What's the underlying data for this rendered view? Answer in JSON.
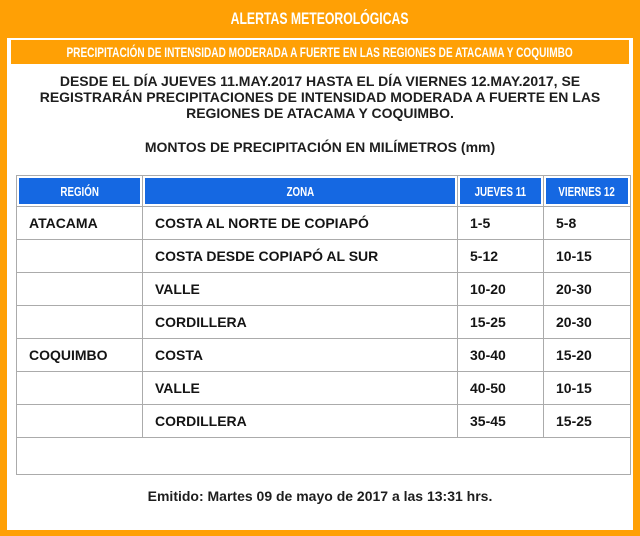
{
  "header": {
    "title": "ALERTAS METEOROLÓGICAS"
  },
  "banner": {
    "text": "PRECIPITACIÓN DE INTENSIDAD MODERADA A FUERTE EN LAS REGIONES DE ATACAMA Y COQUIMBO"
  },
  "description": "DESDE EL DÍA JUEVES 11.MAY.2017 HASTA EL DÍA VIERNES 12.MAY.2017, SE REGISTRARÁN PRECIPITACIONES DE INTENSIDAD MODERADA A FUERTE EN LAS REGIONES DE ATACAMA Y COQUIMBO.",
  "table_title": "MONTOS DE PRECIPITACIÓN EN MILÍMETROS (mm)",
  "table": {
    "headers": [
      "REGIÓN",
      "ZONA",
      "JUEVES 11",
      "VIERNES 12"
    ],
    "rows": [
      {
        "region": "ATACAMA",
        "zona": "COSTA AL NORTE DE COPIAPÓ",
        "jueves": "1-5",
        "viernes": "5-8"
      },
      {
        "region": "",
        "zona": "COSTA DESDE COPIAPÓ AL SUR",
        "jueves": "5-12",
        "viernes": "10-15"
      },
      {
        "region": "",
        "zona": "VALLE",
        "jueves": "10-20",
        "viernes": "20-30"
      },
      {
        "region": "",
        "zona": "CORDILLERA",
        "jueves": "15-25",
        "viernes": "20-30"
      },
      {
        "region": "COQUIMBO",
        "zona": "COSTA",
        "jueves": "30-40",
        "viernes": "15-20"
      },
      {
        "region": "",
        "zona": "VALLE",
        "jueves": "40-50",
        "viernes": "10-15"
      },
      {
        "region": "",
        "zona": "CORDILLERA",
        "jueves": "35-45",
        "viernes": "15-25"
      }
    ]
  },
  "footer": {
    "emitted": "Emitido: Martes 09 de mayo de 2017 a las 13:31 hrs."
  },
  "colors": {
    "orange": "#FFA005",
    "header_blue": "#1568E2",
    "table_border": "#ABABAB"
  }
}
